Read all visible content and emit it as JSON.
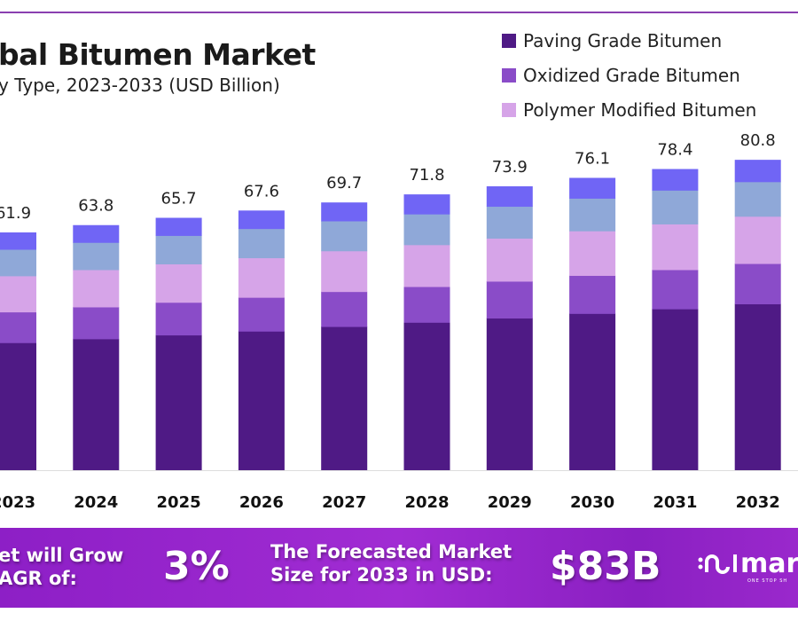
{
  "title": "bal Bitumen Market",
  "subtitle": "y Type, 2023-2033 (USD Billion)",
  "legend": [
    {
      "label": "Paving Grade Bitumen",
      "color": "#4f1a85"
    },
    {
      "label": "Oxidized Grade Bitumen",
      "color": "#8a4cc8"
    },
    {
      "label": "Polymer Modified Bitumen",
      "color": "#d6a4e8"
    }
  ],
  "chart_data": {
    "type": "bar",
    "stacked": true,
    "categories": [
      "2023",
      "2024",
      "2025",
      "2026",
      "2027",
      "2028",
      "2029",
      "2030",
      "2031",
      "2032"
    ],
    "totals": [
      61.9,
      63.8,
      65.7,
      67.6,
      69.7,
      71.8,
      73.9,
      76.1,
      78.4,
      80.8
    ],
    "total_labels": [
      "61.9",
      "63.8",
      "65.7",
      "67.6",
      "69.7",
      "71.8",
      "73.9",
      "76.1",
      "78.4",
      "80.8"
    ],
    "series": [
      {
        "name": "Paving Grade Bitumen",
        "color": "#4f1a85",
        "values": [
          33.2,
          34.2,
          35.2,
          36.2,
          37.4,
          38.5,
          39.6,
          40.8,
          42.0,
          43.3
        ]
      },
      {
        "name": "Oxidized Grade Bitumen",
        "color": "#8a4cc8",
        "values": [
          8.0,
          8.3,
          8.5,
          8.8,
          9.1,
          9.3,
          9.6,
          9.9,
          10.2,
          10.5
        ]
      },
      {
        "name": "Polymer Modified Bitumen",
        "color": "#d6a4e8",
        "values": [
          9.4,
          9.7,
          10.0,
          10.3,
          10.6,
          10.9,
          11.2,
          11.6,
          11.9,
          12.3
        ]
      },
      {
        "color": "#8fa8d8",
        "values": [
          6.9,
          7.1,
          7.4,
          7.6,
          7.8,
          8.0,
          8.3,
          8.5,
          8.8,
          9.0
        ]
      },
      {
        "color": "#7065f5",
        "values": [
          4.4,
          4.5,
          4.6,
          4.7,
          4.8,
          5.1,
          5.2,
          5.3,
          5.5,
          5.7
        ]
      }
    ],
    "grid": false,
    "legend_position": "top-right"
  },
  "banner": {
    "cagr_line1": "et will Grow",
    "cagr_line2": "AGR of:",
    "cagr_value": "3%",
    "forecast_line1": "The Forecasted Market",
    "forecast_line2": "Size for 2033 in USD:",
    "forecast_value": "$83B",
    "logo_text": "mar",
    "logo_tagline": "ONE STOP SH"
  }
}
